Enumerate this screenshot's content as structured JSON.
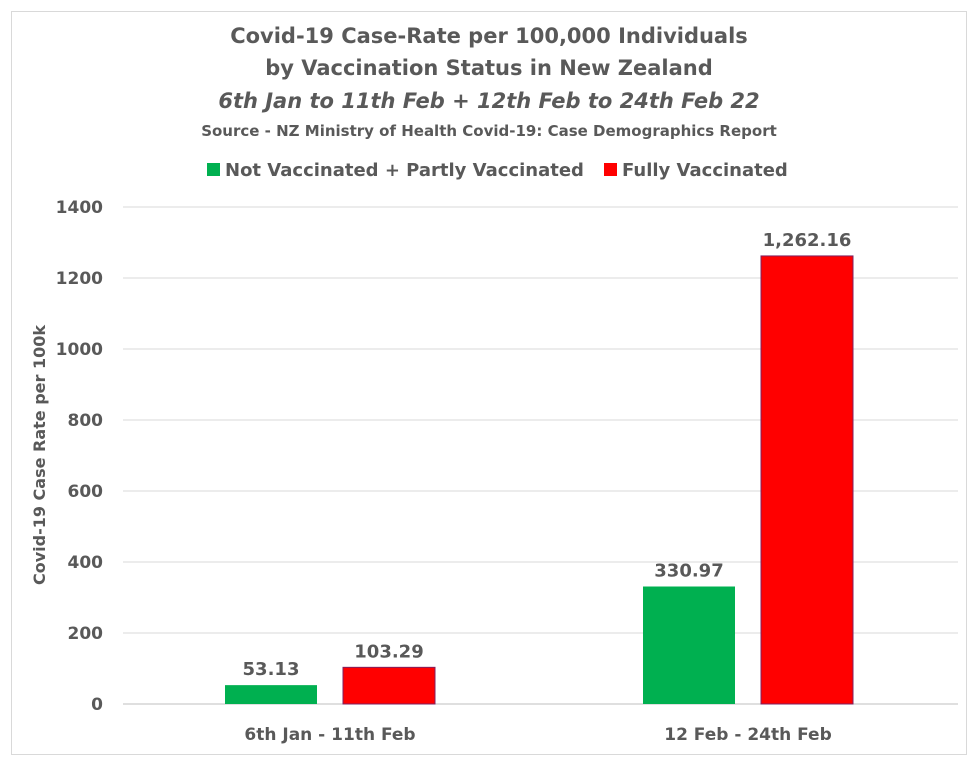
{
  "chart_data": {
    "type": "bar",
    "title_lines": [
      "Covid-19 Case-Rate per 100,000 Individuals",
      "by Vaccination Status in New Zealand"
    ],
    "subtitle": "6th Jan to 11th Feb + 12th Feb to 24th Feb 22",
    "source": "Source - NZ Ministry of Health Covid-19: Case Demographics Report",
    "categories": [
      "6th Jan - 11th Feb",
      "12 Feb - 24th Feb"
    ],
    "series": [
      {
        "name": "Not Vaccinated + Partly Vaccinated",
        "color": "#00b050",
        "values": [
          53.13,
          330.97
        ],
        "labels": [
          "53.13",
          "330.97"
        ]
      },
      {
        "name": "Fully Vaccinated",
        "color": "#ff0000",
        "values": [
          103.29,
          1262.16
        ],
        "labels": [
          "103.29",
          "1,262.16"
        ]
      }
    ],
    "xlabel": "",
    "ylabel": "Covid-19 Case Rate per 100k",
    "ylim": [
      0,
      1400
    ],
    "yticks": [
      "0",
      "200",
      "400",
      "600",
      "800",
      "1000",
      "1200",
      "1400"
    ],
    "grid": true,
    "legend_position": "top"
  }
}
